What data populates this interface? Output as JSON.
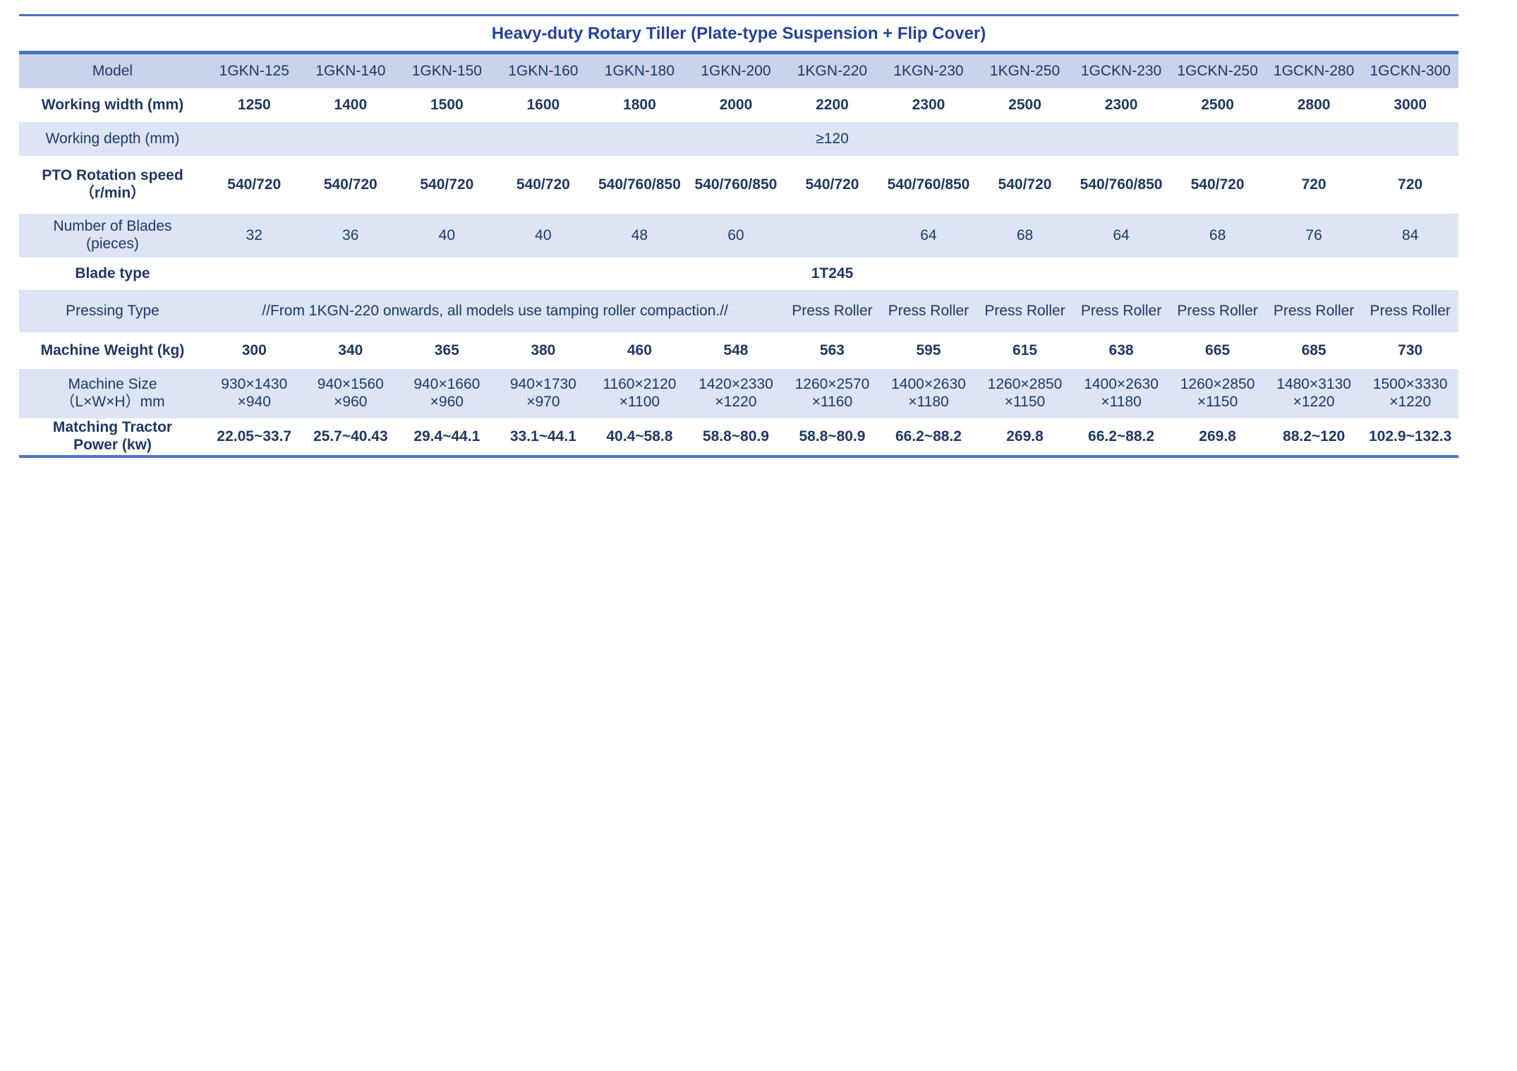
{
  "colors": {
    "line": "#4a72c2",
    "header_bg": "#c9d4ec",
    "alt_bg": "#dce4f5",
    "text": "#1f3864",
    "title": "#24439a"
  },
  "title": "Heavy-duty Rotary Tiller (Plate-type Suspension + Flip Cover)",
  "table": {
    "model_row": {
      "label": "Model",
      "values": [
        "1GKN-125",
        "1GKN-140",
        "1GKN-150",
        "1GKN-160",
        "1GKN-180",
        "1GKN-200",
        "1KGN-220",
        "1KGN-230",
        "1KGN-250",
        "1GCKN-230",
        "1GCKN-250",
        "1GCKN-280",
        "1GCKN-300"
      ]
    },
    "working_width": {
      "label": "Working width (mm)",
      "values": [
        "1250",
        "1400",
        "1500",
        "1600",
        "1800",
        "2000",
        "2200",
        "2300",
        "2500",
        "2300",
        "2500",
        "2800",
        "3000"
      ]
    },
    "working_depth": {
      "label": "Working depth (mm)",
      "merged_value": "≥120"
    },
    "pto_speed": {
      "label": "PTO Rotation speed\n（r/min）",
      "values": [
        "540/720",
        "540/720",
        "540/720",
        "540/720",
        "540/760/850",
        "540/760/850",
        "540/720",
        "540/760/850",
        "540/720",
        "540/760/850",
        "540/720",
        "720",
        "720"
      ]
    },
    "blades": {
      "label": "Number of Blades\n(pieces)",
      "values": [
        "32",
        "36",
        "40",
        "40",
        "48",
        "60",
        "",
        "64",
        "68",
        "64",
        "68",
        "76",
        "84"
      ]
    },
    "blade_type": {
      "label": "Blade type",
      "merged_value": "1T245"
    },
    "pressing": {
      "label": "Pressing Type",
      "merged_note": "//From 1KGN-220 onwards, all models use tamping roller compaction.//",
      "values": [
        "Press Roller",
        "Press Roller",
        "Press Roller",
        "Press Roller",
        "Press Roller",
        "Press Roller",
        "Press Roller"
      ]
    },
    "weight": {
      "label": "Machine Weight (kg)",
      "values": [
        "300",
        "340",
        "365",
        "380",
        "460",
        "548",
        "563",
        "595",
        "615",
        "638",
        "665",
        "685",
        "730"
      ]
    },
    "size": {
      "label": "Machine Size\n（L×W×H）mm",
      "values": [
        "930×1430\n×940",
        "940×1560\n×960",
        "940×1660\n×960",
        "940×1730\n×970",
        "1160×2120\n×1100",
        "1420×2330\n×1220",
        "1260×2570\n×1160",
        "1400×2630\n×1180",
        "1260×2850\n×1150",
        "1400×2630\n×1180",
        "1260×2850\n×1150",
        "1480×3130\n×1220",
        "1500×3330\n×1220"
      ]
    },
    "power": {
      "label": "Matching Tractor\nPower (kw)",
      "values": [
        "22.05~33.7",
        "25.7~40.43",
        "29.4~44.1",
        "33.1~44.1",
        "40.4~58.8",
        "58.8~80.9",
        "58.8~80.9",
        "66.2~88.2",
        "269.8",
        "66.2~88.2",
        "269.8",
        "88.2~120",
        "102.9~132.3"
      ]
    }
  }
}
